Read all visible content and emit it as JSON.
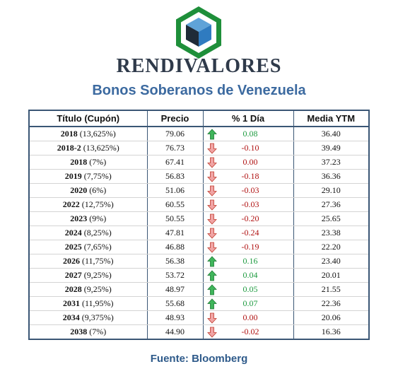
{
  "brand": "RENDIVALORES",
  "subtitle": "Bonos Soberanos de Venezuela",
  "source": "Fuente: Bloomberg",
  "colors": {
    "up": "#1d9a3f",
    "down": "#b01212",
    "header_border": "#3a5675",
    "title": "#3c6aa0"
  },
  "table": {
    "headers": [
      "Título (Cupón)",
      "Precio",
      "% 1 Día",
      "Media YTM"
    ],
    "rows": [
      {
        "year": "2018",
        "coupon": "(13,625%)",
        "price": "79.06",
        "change": "0.08",
        "dir": "up",
        "ytm": "36.40"
      },
      {
        "year": "2018-2",
        "coupon": "(13,625%)",
        "price": "76.73",
        "change": "-0.10",
        "dir": "down",
        "ytm": "39.49"
      },
      {
        "year": "2018",
        "coupon": "(7%)",
        "price": "67.41",
        "change": "0.00",
        "dir": "down",
        "ytm": "37.23"
      },
      {
        "year": "2019",
        "coupon": "(7,75%)",
        "price": "56.83",
        "change": "-0.18",
        "dir": "down",
        "ytm": "36.36"
      },
      {
        "year": "2020",
        "coupon": "(6%)",
        "price": "51.06",
        "change": "-0.03",
        "dir": "down",
        "ytm": "29.10"
      },
      {
        "year": "2022",
        "coupon": "(12,75%)",
        "price": "60.55",
        "change": "-0.03",
        "dir": "down",
        "ytm": "27.36"
      },
      {
        "year": "2023",
        "coupon": "(9%)",
        "price": "50.55",
        "change": "-0.20",
        "dir": "down",
        "ytm": "25.65"
      },
      {
        "year": "2024",
        "coupon": "(8,25%)",
        "price": "47.81",
        "change": "-0.24",
        "dir": "down",
        "ytm": "23.38"
      },
      {
        "year": "2025",
        "coupon": "(7,65%)",
        "price": "46.88",
        "change": "-0.19",
        "dir": "down",
        "ytm": "22.20"
      },
      {
        "year": "2026",
        "coupon": "(11,75%)",
        "price": "56.38",
        "change": "0.16",
        "dir": "up",
        "ytm": "23.40"
      },
      {
        "year": "2027",
        "coupon": "(9,25%)",
        "price": "53.72",
        "change": "0.04",
        "dir": "up",
        "ytm": "20.01"
      },
      {
        "year": "2028",
        "coupon": "(9,25%)",
        "price": "48.97",
        "change": "0.05",
        "dir": "up",
        "ytm": "21.55"
      },
      {
        "year": "2031",
        "coupon": "(11,95%)",
        "price": "55.68",
        "change": "0.07",
        "dir": "up",
        "ytm": "22.36"
      },
      {
        "year": "2034",
        "coupon": "(9,375%)",
        "price": "48.93",
        "change": "0.00",
        "dir": "down",
        "ytm": "20.06"
      },
      {
        "year": "2038",
        "coupon": "(7%)",
        "price": "44.90",
        "change": "-0.02",
        "dir": "down",
        "ytm": "16.36"
      }
    ]
  }
}
